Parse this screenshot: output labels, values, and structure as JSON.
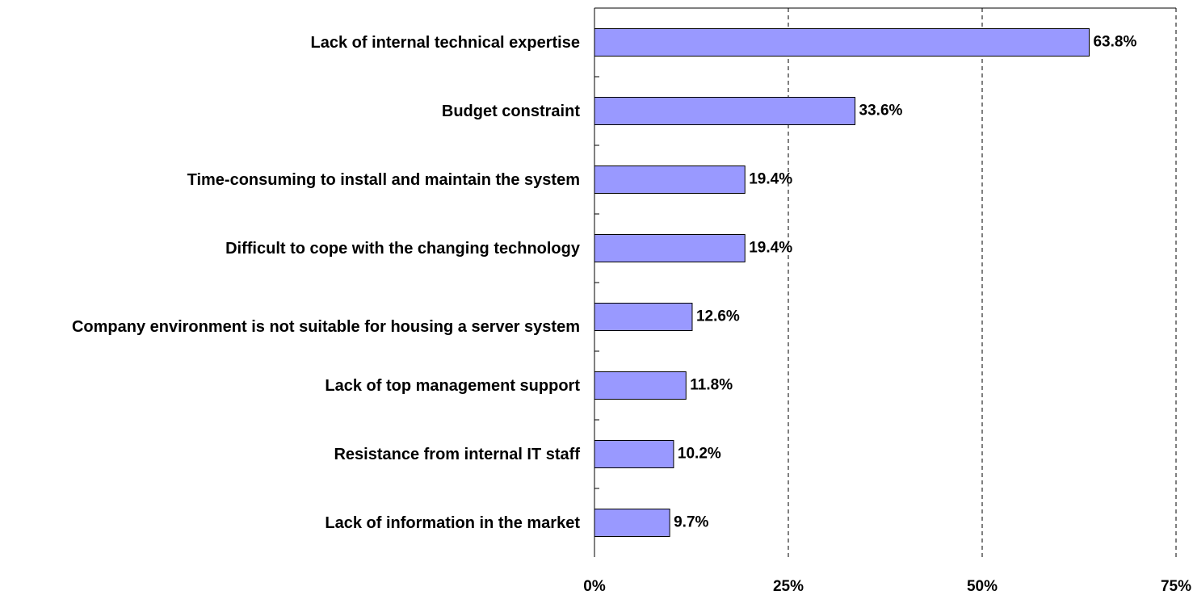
{
  "chart_data": {
    "type": "bar",
    "orientation": "horizontal",
    "categories": [
      "Lack of internal technical expertise",
      "Budget constraint",
      "Time-consuming to install and maintain the system",
      "Difficult to cope with the changing technology",
      "Company environment is not suitable for housing a server system",
      "Lack of top management support",
      "Resistance from internal IT staff",
      "Lack of information in the market"
    ],
    "values": [
      63.8,
      33.6,
      19.4,
      19.4,
      12.6,
      11.8,
      10.2,
      9.7
    ],
    "value_labels": [
      "63.8%",
      "33.6%",
      "19.4%",
      "19.4%",
      "12.6%",
      "11.8%",
      "10.2%",
      "9.7%"
    ],
    "color": "#9999ff",
    "xlim": [
      0,
      75
    ],
    "xticks": [
      {
        "value": 0,
        "label": "0%"
      },
      {
        "value": 25,
        "label": "25%"
      },
      {
        "value": 50,
        "label": "50%"
      },
      {
        "value": 75,
        "label": "75%"
      }
    ],
    "grid": true
  }
}
